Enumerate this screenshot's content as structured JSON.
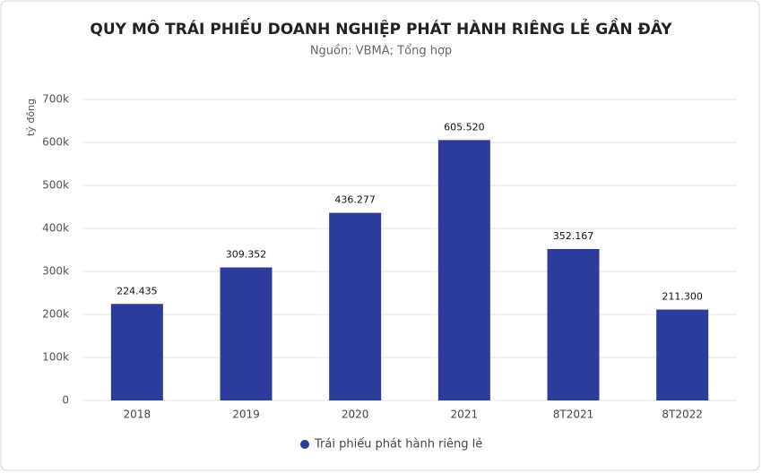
{
  "chart_data": {
    "type": "bar",
    "title": "QUY MÔ TRÁI PHIẾU DOANH NGHIỆP PHÁT HÀNH RIÊNG LẺ GẦN ĐÂY",
    "subtitle": "Nguồn: VBMA; Tổng hợp",
    "y_axis_label": "tỷ đồng",
    "categories": [
      "2018",
      "2019",
      "2020",
      "2021",
      "8T2021",
      "8T2022"
    ],
    "series": [
      {
        "name": "Trái phiếu phát hành riêng lẻ",
        "color": "#2b3c9b",
        "values": [
          224435,
          309352,
          436277,
          605520,
          352167,
          211300
        ],
        "value_labels": [
          "224.435",
          "309.352",
          "436.277",
          "605.520",
          "352.167",
          "211.300"
        ]
      }
    ],
    "ylim": [
      0,
      700000
    ],
    "yticks": [
      0,
      {
        "value": 100000,
        "label": "100k"
      },
      {
        "value": 200000,
        "label": "200k"
      },
      {
        "value": 300000,
        "label": "300k"
      },
      {
        "value": 400000,
        "label": "400k"
      },
      {
        "value": 500000,
        "label": "500k"
      },
      {
        "value": 600000,
        "label": "600k"
      },
      {
        "value": 700000,
        "label": "700k"
      }
    ],
    "grid": true
  }
}
